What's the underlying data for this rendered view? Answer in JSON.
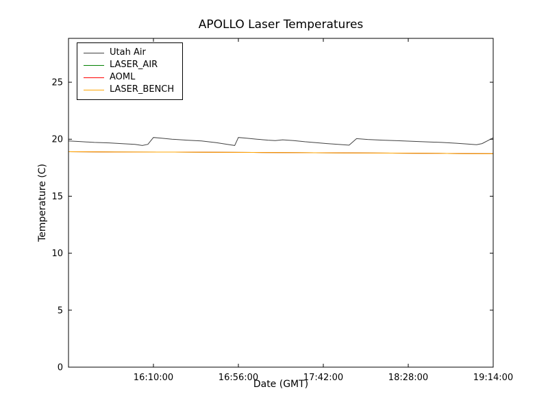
{
  "chart_data": {
    "type": "line",
    "title": "APOLLO Laser Temperatures",
    "xlabel": "Date (GMT)",
    "ylabel": "Temperature (C)",
    "grid": false,
    "legend_position": "upper left",
    "x_axis": {
      "range_minutes": [
        0,
        230
      ],
      "ticks": [
        {
          "pos": 46,
          "label": "16:10:00"
        },
        {
          "pos": 92,
          "label": "16:56:00"
        },
        {
          "pos": 138,
          "label": "17:42:00"
        },
        {
          "pos": 184,
          "label": "18:28:00"
        },
        {
          "pos": 230,
          "label": "19:14:00"
        }
      ]
    },
    "y_axis": {
      "range": [
        0,
        28.85
      ],
      "ticks": [
        0,
        5,
        10,
        15,
        20,
        25
      ]
    },
    "series": [
      {
        "name": "Utah Air",
        "color": "#404040",
        "points": [
          [
            0,
            19.85
          ],
          [
            6,
            19.8
          ],
          [
            14,
            19.72
          ],
          [
            22,
            19.68
          ],
          [
            30,
            19.6
          ],
          [
            36,
            19.55
          ],
          [
            40,
            19.45
          ],
          [
            43,
            19.55
          ],
          [
            46,
            20.15
          ],
          [
            50,
            20.1
          ],
          [
            56,
            20.0
          ],
          [
            64,
            19.92
          ],
          [
            72,
            19.85
          ],
          [
            80,
            19.7
          ],
          [
            86,
            19.55
          ],
          [
            90,
            19.45
          ],
          [
            92,
            20.15
          ],
          [
            96,
            20.1
          ],
          [
            102,
            20.0
          ],
          [
            108,
            19.92
          ],
          [
            112,
            19.88
          ],
          [
            116,
            19.95
          ],
          [
            122,
            19.88
          ],
          [
            128,
            19.78
          ],
          [
            134,
            19.7
          ],
          [
            140,
            19.62
          ],
          [
            146,
            19.55
          ],
          [
            152,
            19.48
          ],
          [
            156,
            20.05
          ],
          [
            162,
            19.98
          ],
          [
            170,
            19.92
          ],
          [
            178,
            19.87
          ],
          [
            186,
            19.82
          ],
          [
            194,
            19.77
          ],
          [
            202,
            19.72
          ],
          [
            210,
            19.65
          ],
          [
            216,
            19.58
          ],
          [
            221,
            19.52
          ],
          [
            224,
            19.62
          ],
          [
            230,
            20.12
          ]
        ]
      },
      {
        "name": "LASER_AIR",
        "color": "#008000",
        "points": [
          [
            0,
            18.9
          ],
          [
            25,
            18.88
          ],
          [
            50,
            18.87
          ],
          [
            75,
            18.86
          ],
          [
            100,
            18.84
          ],
          [
            125,
            18.82
          ],
          [
            150,
            18.8
          ],
          [
            175,
            18.78
          ],
          [
            200,
            18.76
          ],
          [
            215,
            18.74
          ],
          [
            230,
            18.73
          ]
        ]
      },
      {
        "name": "AOML",
        "color": "#ff0000",
        "points": [
          [
            0,
            18.9
          ],
          [
            25,
            18.88
          ],
          [
            50,
            18.87
          ],
          [
            75,
            18.86
          ],
          [
            100,
            18.84
          ],
          [
            125,
            18.82
          ],
          [
            150,
            18.8
          ],
          [
            175,
            18.78
          ],
          [
            200,
            18.76
          ],
          [
            215,
            18.74
          ],
          [
            230,
            18.73
          ]
        ]
      },
      {
        "name": "LASER_BENCH",
        "color": "#ffa500",
        "points": [
          [
            0,
            18.9
          ],
          [
            25,
            18.88
          ],
          [
            50,
            18.87
          ],
          [
            75,
            18.86
          ],
          [
            100,
            18.84
          ],
          [
            125,
            18.82
          ],
          [
            150,
            18.8
          ],
          [
            175,
            18.78
          ],
          [
            200,
            18.76
          ],
          [
            215,
            18.74
          ],
          [
            230,
            18.73
          ]
        ]
      }
    ]
  }
}
